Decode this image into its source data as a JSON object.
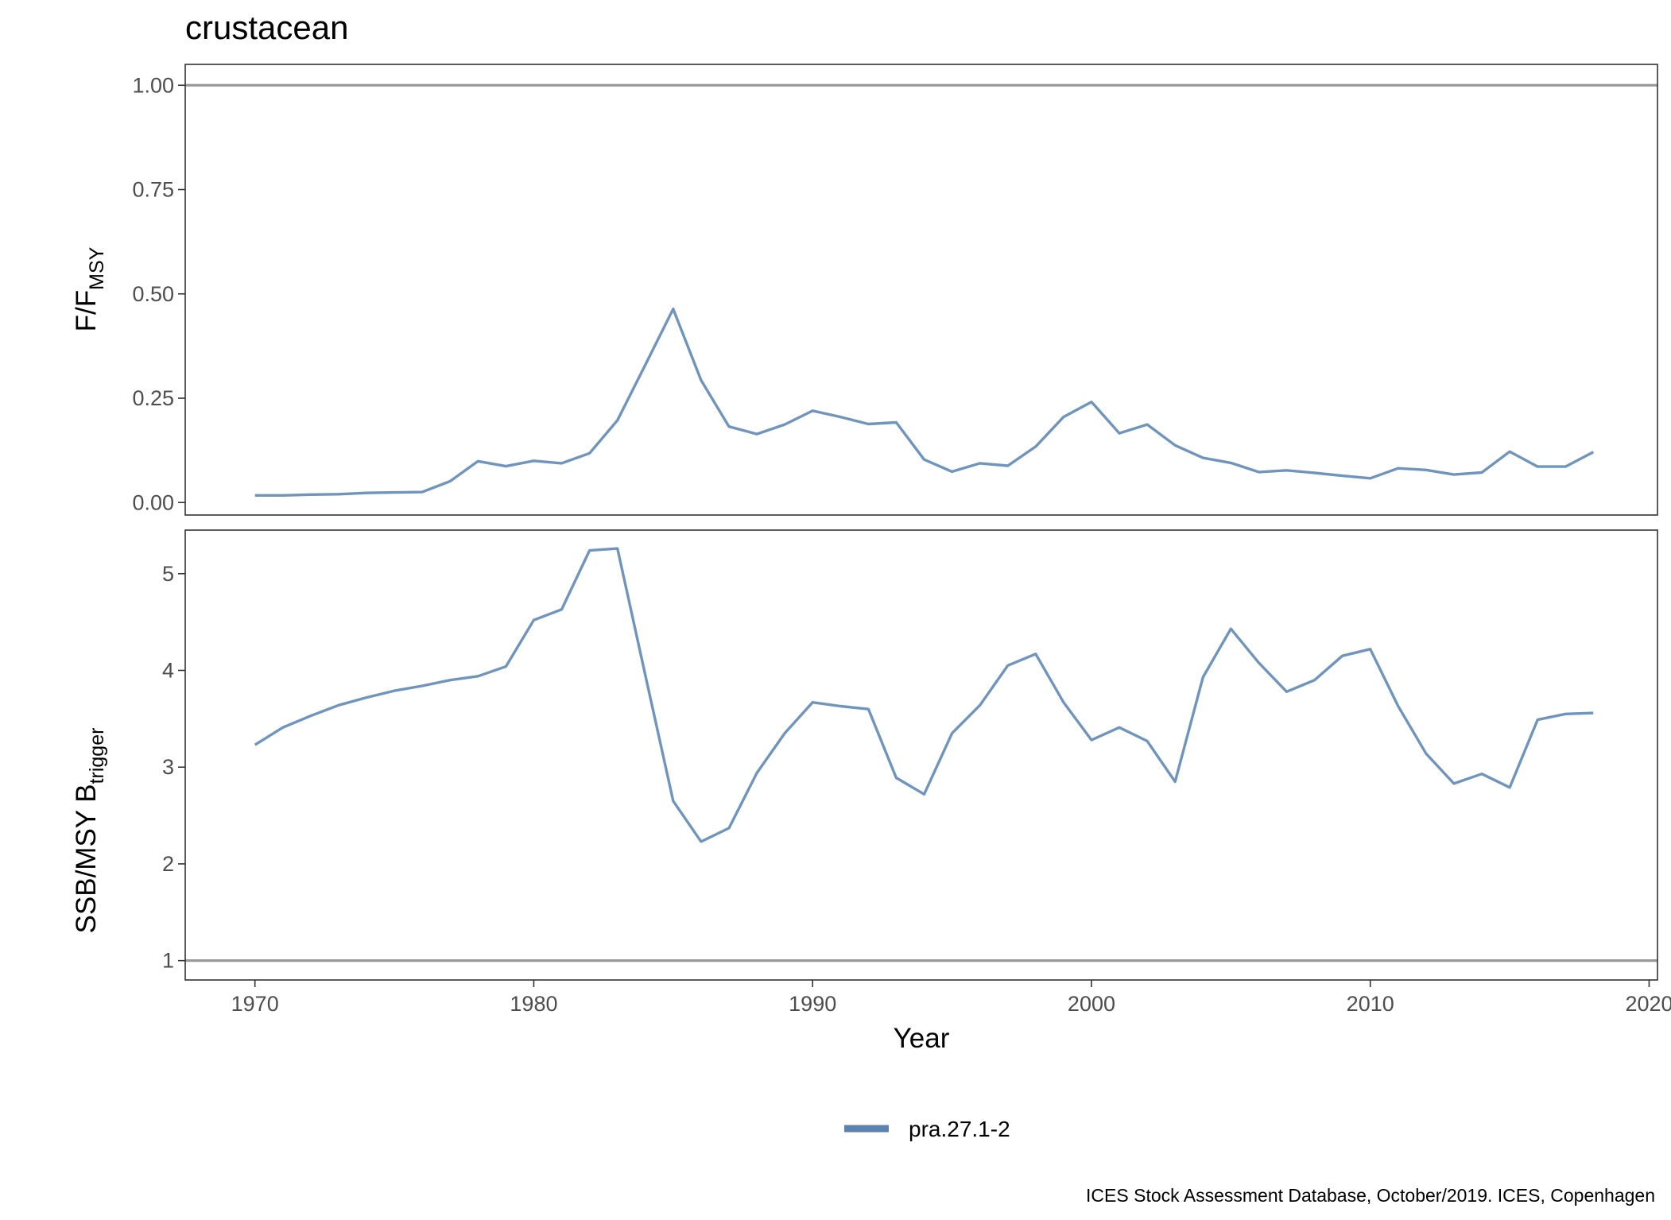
{
  "chart_data": {
    "type": "line",
    "title": "crustacean",
    "caption": "ICES Stock Assessment Database, October/2019. ICES, Copenhagen",
    "xlabel": "Year",
    "xlim": [
      1967.5,
      2020.3
    ],
    "x_ticks": [
      1970,
      1980,
      1990,
      2000,
      2010,
      2020
    ],
    "legend": {
      "position": "bottom",
      "entries": [
        "pra.27.1-2"
      ]
    },
    "series_color": "#6f94bd",
    "reference_line_color": "#999999",
    "panels": [
      {
        "id": "f_fmsy",
        "ylabel": {
          "main": "F/F",
          "sub": "MSY"
        },
        "ylim": [
          -0.03,
          1.05
        ],
        "y_ticks": [
          0.0,
          0.25,
          0.5,
          0.75,
          1.0
        ],
        "y_tick_labels": [
          "0.00",
          "0.25",
          "0.50",
          "0.75",
          "1.00"
        ],
        "reference_line": 1.0,
        "series": [
          {
            "name": "pra.27.1-2",
            "x": [
              1970,
              1971,
              1972,
              1973,
              1974,
              1975,
              1976,
              1977,
              1978,
              1979,
              1980,
              1981,
              1982,
              1983,
              1984,
              1985,
              1986,
              1987,
              1988,
              1989,
              1990,
              1991,
              1992,
              1993,
              1994,
              1995,
              1996,
              1997,
              1998,
              1999,
              2000,
              2001,
              2002,
              2003,
              2004,
              2005,
              2006,
              2007,
              2008,
              2009,
              2010,
              2011,
              2012,
              2013,
              2014,
              2015,
              2016,
              2017,
              2018
            ],
            "values": [
              0.017,
              0.017,
              0.019,
              0.02,
              0.023,
              0.024,
              0.025,
              0.051,
              0.099,
              0.087,
              0.1,
              0.094,
              0.118,
              0.197,
              0.33,
              0.464,
              0.293,
              0.182,
              0.164,
              0.187,
              0.22,
              0.205,
              0.188,
              0.192,
              0.103,
              0.074,
              0.094,
              0.088,
              0.134,
              0.205,
              0.241,
              0.166,
              0.187,
              0.137,
              0.107,
              0.095,
              0.073,
              0.077,
              0.071,
              0.064,
              0.058,
              0.082,
              0.078,
              0.067,
              0.072,
              0.122,
              0.086,
              0.086,
              0.121
            ]
          }
        ]
      },
      {
        "id": "ssb_btrigger",
        "ylabel": {
          "main": "SSB/MSY B",
          "sub": "trigger"
        },
        "ylim": [
          0.8,
          5.45
        ],
        "y_ticks": [
          1,
          2,
          3,
          4,
          5
        ],
        "y_tick_labels": [
          "1",
          "2",
          "3",
          "4",
          "5"
        ],
        "reference_line": 1,
        "series": [
          {
            "name": "pra.27.1-2",
            "x": [
              1970,
              1971,
              1972,
              1973,
              1974,
              1975,
              1976,
              1977,
              1978,
              1979,
              1980,
              1981,
              1982,
              1983,
              1984,
              1985,
              1986,
              1987,
              1988,
              1989,
              1990,
              1991,
              1992,
              1993,
              1994,
              1995,
              1996,
              1997,
              1998,
              1999,
              2000,
              2001,
              2002,
              2003,
              2004,
              2005,
              2006,
              2007,
              2008,
              2009,
              2010,
              2011,
              2012,
              2013,
              2014,
              2015,
              2016,
              2017,
              2018
            ],
            "values": [
              3.23,
              3.41,
              3.53,
              3.64,
              3.72,
              3.79,
              3.84,
              3.9,
              3.94,
              4.04,
              4.52,
              4.63,
              5.24,
              5.26,
              3.95,
              2.65,
              2.23,
              2.37,
              2.94,
              3.35,
              3.67,
              3.63,
              3.6,
              2.89,
              2.72,
              3.35,
              3.64,
              4.05,
              4.17,
              3.67,
              3.28,
              3.41,
              3.27,
              2.85,
              3.93,
              4.43,
              4.08,
              3.78,
              3.9,
              4.15,
              4.22,
              3.63,
              3.14,
              2.83,
              2.93,
              2.79,
              3.49,
              3.55,
              3.56
            ]
          }
        ]
      }
    ]
  }
}
